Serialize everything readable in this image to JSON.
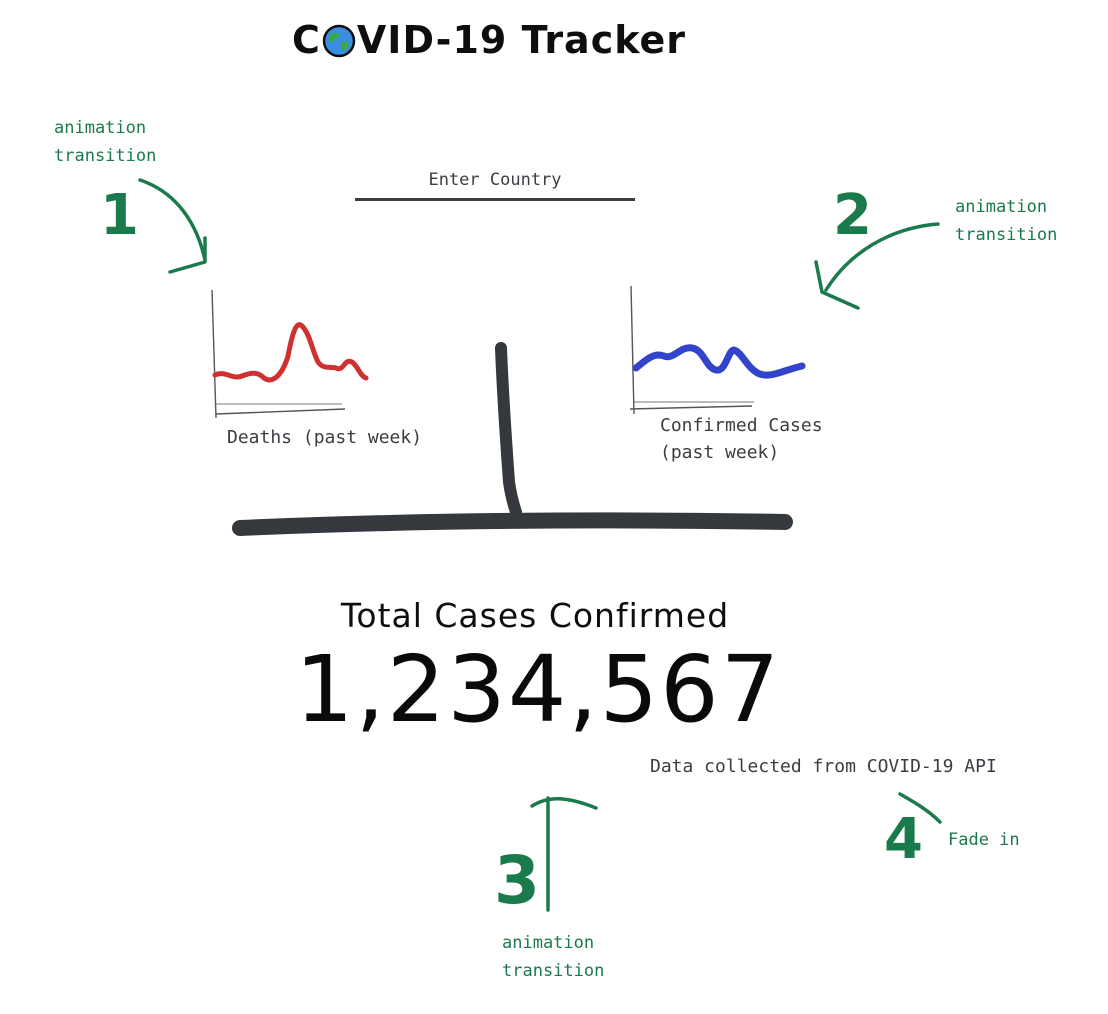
{
  "title": {
    "before": "C",
    "after": "VID-19 Tracker"
  },
  "search": {
    "placeholder": "Enter Country"
  },
  "deaths_chart": {
    "label": "Deaths (past week)",
    "color": "#d03030"
  },
  "confirmed_chart": {
    "label_line1": "Confirmed Cases",
    "label_line2": "(past week)",
    "color": "#3344cc"
  },
  "total": {
    "title": "Total Cases Confirmed",
    "value": "1,234,567"
  },
  "source_note": "Data collected from COVID-19 API",
  "annotations": {
    "color": "#1a7a4c",
    "one": {
      "number": "1",
      "line1": "animation",
      "line2": "transition"
    },
    "two": {
      "number": "2",
      "line1": "animation",
      "line2": "transition"
    },
    "three": {
      "number": "3",
      "line1": "animation",
      "line2": "transition"
    },
    "four": {
      "number": "4",
      "text": "Fade in"
    }
  },
  "icons": {
    "globe": "globe-icon"
  }
}
